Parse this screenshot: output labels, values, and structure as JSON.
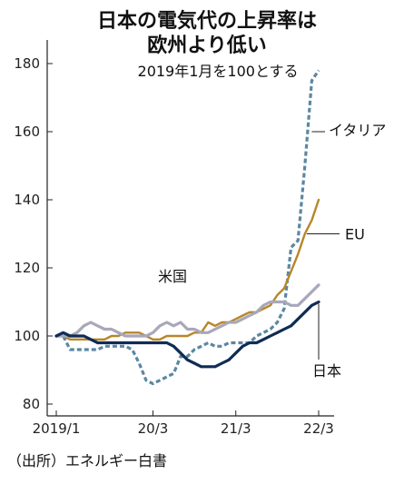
{
  "chart_data": {
    "type": "line",
    "title_lines": [
      "日本の電気代の上昇率は",
      "欧州より低い"
    ],
    "subtitle": "2019年1月を100とする",
    "source": "（出所）エネルギー白書",
    "xlabel": "",
    "ylabel": "",
    "ylim": [
      80,
      180
    ],
    "y_ticks": [
      80,
      100,
      120,
      140,
      160,
      180
    ],
    "x_ticks": [
      {
        "label": "2019/1",
        "t": 0
      },
      {
        "label": "20/3",
        "t": 14
      },
      {
        "label": "21/3",
        "t": 26
      },
      {
        "label": "22/3",
        "t": 38
      }
    ],
    "x": [
      0,
      1,
      2,
      3,
      4,
      5,
      6,
      7,
      8,
      9,
      10,
      11,
      12,
      13,
      14,
      15,
      16,
      17,
      18,
      19,
      20,
      21,
      22,
      23,
      24,
      25,
      26,
      27,
      28,
      29,
      30,
      31,
      32,
      33,
      34,
      35,
      36,
      37,
      38
    ],
    "series": [
      {
        "name": "イタリア",
        "color": "#5b87a3",
        "dash": "5,3",
        "width": 3.2,
        "values": [
          100,
          100,
          96,
          96,
          96,
          96,
          96,
          97,
          97,
          97,
          97,
          96,
          92,
          87,
          86,
          87,
          88,
          89,
          94,
          94,
          96,
          97,
          98,
          97,
          97,
          98,
          98,
          98,
          98,
          100,
          101,
          102,
          104,
          108,
          126,
          128,
          150,
          175,
          178
        ]
      },
      {
        "name": "EU",
        "color": "#b8862a",
        "dash": "",
        "width": 2.4,
        "values": [
          100,
          100,
          99,
          99,
          99,
          99,
          99,
          99,
          100,
          100,
          101,
          101,
          101,
          100,
          99,
          99,
          100,
          100,
          100,
          100,
          101,
          101,
          104,
          103,
          104,
          104,
          105,
          106,
          107,
          107,
          108,
          109,
          112,
          114,
          119,
          124,
          130,
          134,
          140
        ]
      },
      {
        "name": "米国",
        "color": "#a8a8ba",
        "dash": "",
        "width": 3.2,
        "values": [
          100,
          100,
          100,
          101,
          103,
          104,
          103,
          102,
          102,
          101,
          100,
          100,
          100,
          100,
          101,
          103,
          104,
          103,
          104,
          102,
          102,
          101,
          101,
          102,
          103,
          104,
          104,
          105,
          106,
          107,
          109,
          110,
          110,
          110,
          109,
          109,
          111,
          113,
          115
        ]
      },
      {
        "name": "日本",
        "color": "#0f2c55",
        "dash": "",
        "width": 3.2,
        "values": [
          100,
          101,
          100,
          100,
          100,
          99,
          98,
          98,
          98,
          98,
          98,
          98,
          98,
          98,
          98,
          98,
          98,
          97,
          95,
          93,
          92,
          91,
          91,
          91,
          92,
          93,
          95,
          97,
          98,
          98,
          99,
          100,
          101,
          102,
          103,
          105,
          107,
          109,
          110
        ]
      }
    ],
    "series_labels": [
      {
        "series": "イタリア",
        "text": "イタリア"
      },
      {
        "series": "EU",
        "text": "EU"
      },
      {
        "series": "米国",
        "text": "米国"
      },
      {
        "series": "日本",
        "text": "日本"
      }
    ],
    "grid": false,
    "legend": "direct labels"
  }
}
